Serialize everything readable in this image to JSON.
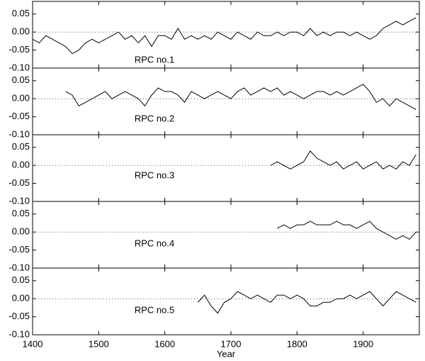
{
  "chart_data": [
    {
      "type": "line",
      "annotation": "RPC no.1",
      "color": "#000000",
      "zero_line": true,
      "xlim": [
        1400,
        1985
      ],
      "ylim": [
        -0.1,
        0.085
      ],
      "yticks": [
        {
          "value": -0.1,
          "label": "-0.10"
        },
        -0.05,
        {
          "value": 0,
          "label": "0.00"
        },
        0.05
      ],
      "x": [
        1400,
        1410,
        1420,
        1430,
        1440,
        1450,
        1460,
        1470,
        1480,
        1490,
        1500,
        1510,
        1520,
        1530,
        1540,
        1550,
        1560,
        1570,
        1580,
        1590,
        1600,
        1610,
        1620,
        1630,
        1640,
        1650,
        1660,
        1670,
        1680,
        1690,
        1700,
        1710,
        1720,
        1730,
        1740,
        1750,
        1760,
        1770,
        1780,
        1790,
        1800,
        1810,
        1820,
        1830,
        1840,
        1850,
        1860,
        1870,
        1880,
        1890,
        1900,
        1910,
        1920,
        1930,
        1940,
        1950,
        1960,
        1970,
        1980
      ],
      "values": [
        -0.02,
        -0.03,
        -0.01,
        -0.02,
        -0.03,
        -0.04,
        -0.06,
        -0.05,
        -0.03,
        -0.02,
        -0.03,
        -0.02,
        -0.01,
        0.0,
        -0.02,
        -0.01,
        -0.03,
        -0.01,
        -0.04,
        -0.01,
        -0.01,
        -0.02,
        0.01,
        -0.02,
        -0.01,
        -0.02,
        -0.01,
        -0.02,
        0.0,
        -0.01,
        -0.02,
        0.0,
        -0.01,
        -0.02,
        0.0,
        -0.01,
        -0.01,
        0.0,
        -0.01,
        0.0,
        0.0,
        -0.01,
        0.01,
        -0.01,
        0.0,
        -0.01,
        0.0,
        0.0,
        -0.01,
        0.0,
        -0.01,
        -0.02,
        -0.01,
        0.01,
        0.02,
        0.03,
        0.02,
        0.03,
        0.04
      ]
    },
    {
      "type": "line",
      "annotation": "RPC no.2",
      "color": "#000000",
      "zero_line": true,
      "xlim": [
        1400,
        1985
      ],
      "ylim": [
        -0.1,
        0.085
      ],
      "yticks": [
        {
          "value": -0.1,
          "label": "-0.10"
        },
        -0.05,
        {
          "value": 0,
          "label": "0.00"
        },
        0.05
      ],
      "x": [
        1450,
        1460,
        1470,
        1480,
        1490,
        1500,
        1510,
        1520,
        1530,
        1540,
        1550,
        1560,
        1570,
        1580,
        1590,
        1600,
        1610,
        1620,
        1630,
        1640,
        1650,
        1660,
        1670,
        1680,
        1690,
        1700,
        1710,
        1720,
        1730,
        1740,
        1750,
        1760,
        1770,
        1780,
        1790,
        1800,
        1810,
        1820,
        1830,
        1840,
        1850,
        1860,
        1870,
        1880,
        1890,
        1900,
        1910,
        1920,
        1930,
        1940,
        1950,
        1960,
        1970,
        1980
      ],
      "values": [
        0.02,
        0.01,
        -0.02,
        -0.01,
        0.0,
        0.01,
        0.02,
        0.0,
        0.01,
        0.02,
        0.01,
        0.0,
        -0.02,
        0.01,
        0.03,
        0.02,
        0.02,
        0.01,
        -0.01,
        0.02,
        0.01,
        0.0,
        0.01,
        0.02,
        0.01,
        0.0,
        0.02,
        0.03,
        0.01,
        0.02,
        0.03,
        0.02,
        0.03,
        0.01,
        0.02,
        0.01,
        0.0,
        0.01,
        0.02,
        0.02,
        0.01,
        0.02,
        0.01,
        0.02,
        0.03,
        0.04,
        0.02,
        -0.01,
        0.0,
        -0.02,
        0.0,
        -0.01,
        -0.02,
        -0.03
      ]
    },
    {
      "type": "line",
      "annotation": "RPC no.3",
      "color": "#000000",
      "zero_line": true,
      "xlim": [
        1400,
        1985
      ],
      "ylim": [
        -0.1,
        0.085
      ],
      "yticks": [
        {
          "value": -0.1,
          "label": "-0.10"
        },
        -0.05,
        {
          "value": 0,
          "label": "0.00"
        },
        0.05
      ],
      "x": [
        1760,
        1770,
        1780,
        1790,
        1800,
        1810,
        1820,
        1830,
        1840,
        1850,
        1860,
        1870,
        1880,
        1890,
        1900,
        1910,
        1920,
        1930,
        1940,
        1950,
        1960,
        1970,
        1980
      ],
      "values": [
        0.0,
        0.01,
        0.0,
        -0.01,
        0.0,
        0.01,
        0.04,
        0.02,
        0.01,
        0.0,
        0.01,
        -0.01,
        0.0,
        0.01,
        -0.01,
        0.0,
        0.01,
        -0.01,
        0.0,
        -0.01,
        0.01,
        0.0,
        0.03
      ]
    },
    {
      "type": "line",
      "annotation": "RPC no.4",
      "color": "#000000",
      "zero_line": true,
      "xlim": [
        1400,
        1985
      ],
      "ylim": [
        -0.1,
        0.085
      ],
      "yticks": [
        {
          "value": -0.1,
          "label": "-0.10"
        },
        -0.05,
        {
          "value": 0,
          "label": "0.00"
        },
        0.05
      ],
      "x": [
        1770,
        1780,
        1790,
        1800,
        1810,
        1820,
        1830,
        1840,
        1850,
        1860,
        1870,
        1880,
        1890,
        1900,
        1910,
        1920,
        1930,
        1940,
        1950,
        1960,
        1970,
        1980
      ],
      "values": [
        0.01,
        0.02,
        0.01,
        0.02,
        0.02,
        0.03,
        0.02,
        0.02,
        0.02,
        0.03,
        0.02,
        0.02,
        0.01,
        0.02,
        0.03,
        0.01,
        0.0,
        -0.01,
        -0.02,
        -0.01,
        -0.02,
        0.0
      ]
    },
    {
      "type": "line",
      "annotation": "RPC no.5",
      "color": "#000000",
      "zero_line": true,
      "xlim": [
        1400,
        1985
      ],
      "ylim": [
        -0.1,
        0.085
      ],
      "yticks": [
        {
          "value": -0.1,
          "label": "-0.10"
        },
        -0.05,
        {
          "value": 0,
          "label": "0.00"
        },
        0.05
      ],
      "xlabel": "Year",
      "xticks": [
        1400,
        1500,
        1600,
        1700,
        1800,
        1900
      ],
      "x": [
        1650,
        1660,
        1670,
        1680,
        1690,
        1700,
        1710,
        1720,
        1730,
        1740,
        1750,
        1760,
        1770,
        1780,
        1790,
        1800,
        1810,
        1820,
        1830,
        1840,
        1850,
        1860,
        1870,
        1880,
        1890,
        1900,
        1910,
        1920,
        1930,
        1940,
        1950,
        1960,
        1970,
        1980
      ],
      "values": [
        -0.01,
        0.01,
        -0.02,
        -0.04,
        -0.01,
        0.0,
        0.02,
        0.01,
        0.0,
        0.01,
        0.0,
        -0.01,
        0.01,
        0.01,
        0.0,
        0.01,
        0.0,
        -0.02,
        -0.02,
        -0.01,
        -0.01,
        0.0,
        0.0,
        0.01,
        0.0,
        0.01,
        0.02,
        0.0,
        -0.02,
        0.0,
        0.02,
        0.01,
        0.0,
        -0.01
      ]
    }
  ]
}
